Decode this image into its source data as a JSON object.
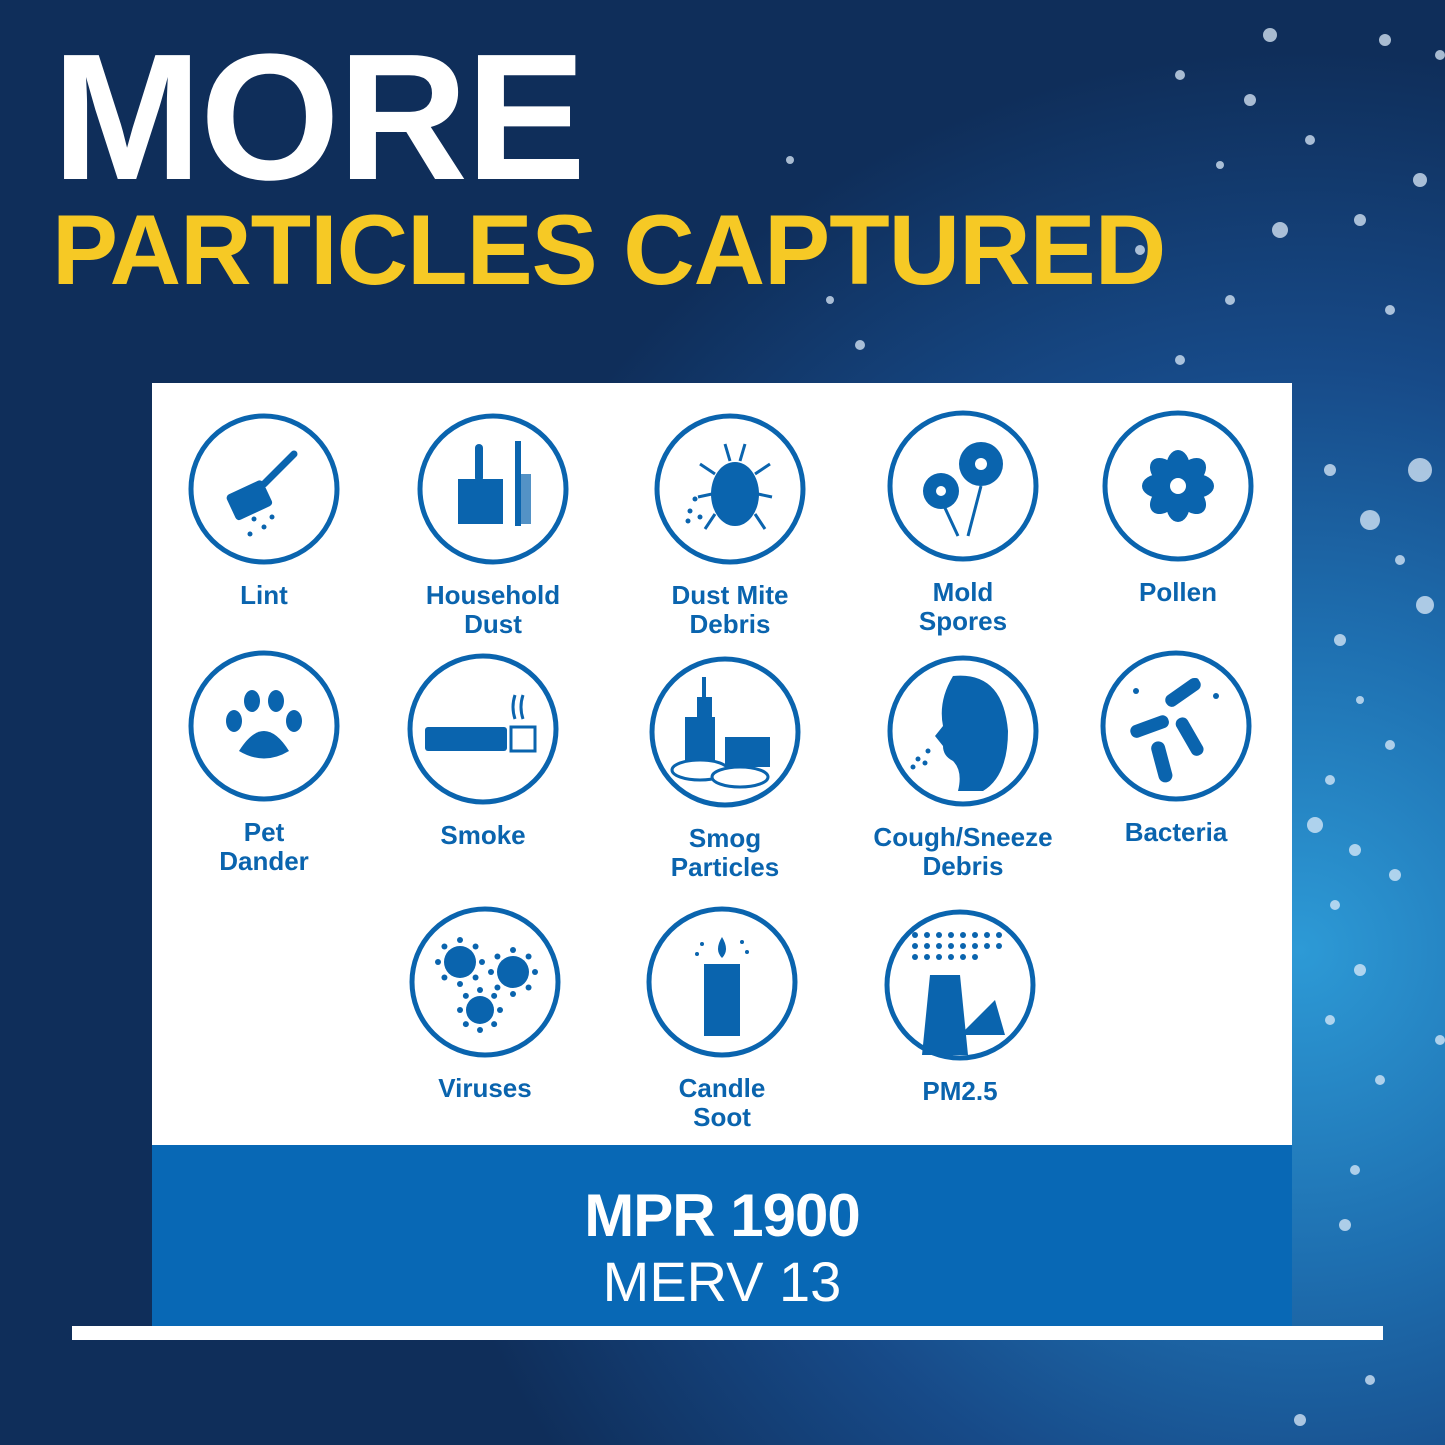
{
  "header": {
    "line1": "MORE",
    "line2": "PARTICLES CAPTURED"
  },
  "colors": {
    "icon_blue": "#0a64ae",
    "headline_yellow": "#f6c925",
    "band_blue": "#0868b5"
  },
  "particles": [
    {
      "label": "Lint",
      "icon": "lint-roller-icon"
    },
    {
      "label": "Household\nDust",
      "icon": "dustpan-icon"
    },
    {
      "label": "Dust Mite\nDebris",
      "icon": "dust-mite-icon"
    },
    {
      "label": "Mold\nSpores",
      "icon": "mold-flower-icon"
    },
    {
      "label": "Pollen",
      "icon": "pollen-flower-icon"
    },
    {
      "label": "Pet\nDander",
      "icon": "paw-print-icon"
    },
    {
      "label": "Smoke",
      "icon": "cigarette-icon"
    },
    {
      "label": "Smog\nParticles",
      "icon": "smog-city-icon"
    },
    {
      "label": "Cough/Sneeze\nDebris",
      "icon": "sneeze-face-icon"
    },
    {
      "label": "Bacteria",
      "icon": "bacteria-icon"
    },
    {
      "label": "Viruses",
      "icon": "virus-icon"
    },
    {
      "label": "Candle\nSoot",
      "icon": "candle-icon"
    },
    {
      "label": "PM2.5",
      "icon": "smokestack-icon"
    }
  ],
  "rating": {
    "mpr": "MPR 1900",
    "merv": "MERV 13"
  }
}
